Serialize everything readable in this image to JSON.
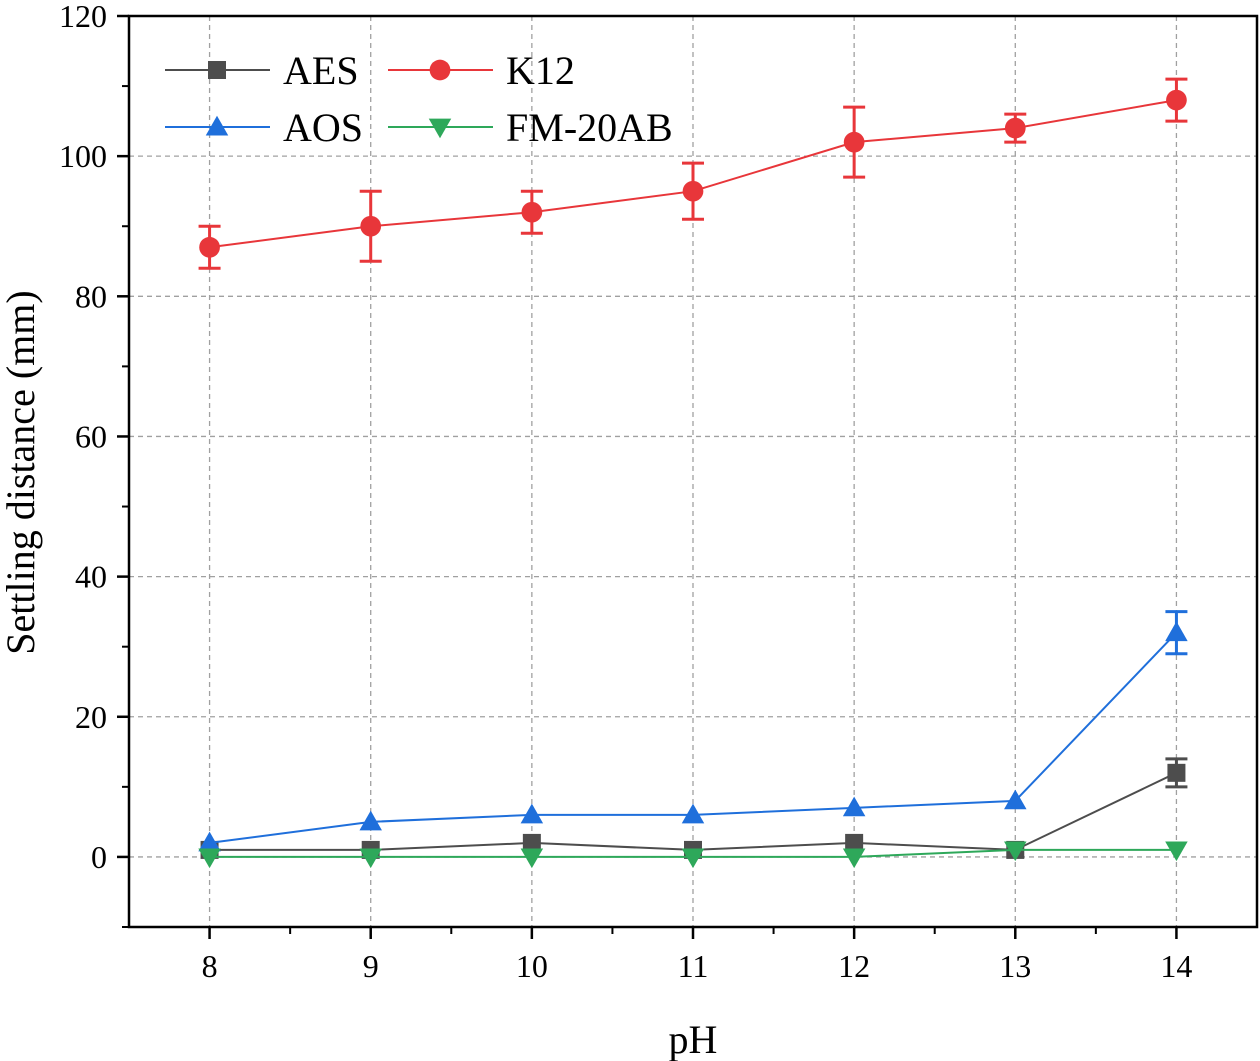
{
  "chart_data": {
    "type": "line",
    "title": "",
    "xlabel": "pH",
    "ylabel": "Settling distance (mm)",
    "x": [
      8,
      9,
      10,
      11,
      12,
      13,
      14
    ],
    "xlim": [
      7.5,
      14.5
    ],
    "ylim": [
      -10,
      120
    ],
    "x_ticks": [
      "8",
      "9",
      "10",
      "11",
      "12",
      "13",
      "14"
    ],
    "y_ticks": [
      "0",
      "20",
      "40",
      "60",
      "80",
      "100",
      "120"
    ],
    "grid": true,
    "legend_position": "top-left",
    "series": [
      {
        "name": "AES",
        "color": "#4d4d4d",
        "marker": "square",
        "values": [
          1,
          1,
          2,
          1,
          2,
          1,
          12
        ],
        "errors": [
          0,
          0,
          0,
          0,
          0,
          0,
          2
        ]
      },
      {
        "name": "K12",
        "color": "#e8363a",
        "marker": "circle",
        "values": [
          87,
          90,
          92,
          95,
          102,
          104,
          108
        ],
        "errors": [
          3,
          5,
          3,
          4,
          5,
          2,
          3
        ]
      },
      {
        "name": "AOS",
        "color": "#1f6fdb",
        "marker": "triangle-up",
        "values": [
          2,
          5,
          6,
          6,
          7,
          8,
          32
        ],
        "errors": [
          0,
          0,
          0,
          0,
          0,
          0,
          3
        ]
      },
      {
        "name": "FM-20AB",
        "color": "#2ea85a",
        "marker": "triangle-down",
        "values": [
          0,
          0,
          0,
          0,
          0,
          1,
          1
        ],
        "errors": [
          0,
          0,
          0,
          0,
          0,
          0,
          0
        ]
      }
    ]
  }
}
